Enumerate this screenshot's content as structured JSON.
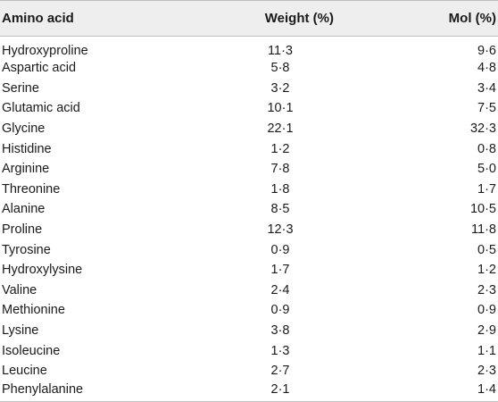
{
  "table": {
    "headers": {
      "amino_acid": "Amino acid",
      "weight": "Weight (%)",
      "mol": "Mol (%)"
    },
    "rows": [
      {
        "name": "Hydroxyproline",
        "weight": "11·3",
        "mol": "9·6"
      },
      {
        "name": "Aspartic acid",
        "weight": "5·8",
        "mol": "4·8"
      },
      {
        "name": "Serine",
        "weight": "3·2",
        "mol": "3·4"
      },
      {
        "name": "Glutamic acid",
        "weight": "10·1",
        "mol": "7·5"
      },
      {
        "name": "Glycine",
        "weight": "22·1",
        "mol": "32·3"
      },
      {
        "name": "Histidine",
        "weight": "1·2",
        "mol": "0·8"
      },
      {
        "name": "Arginine",
        "weight": "7·8",
        "mol": "5·0"
      },
      {
        "name": "Threonine",
        "weight": "1·8",
        "mol": "1·7"
      },
      {
        "name": "Alanine",
        "weight": "8·5",
        "mol": "10·5"
      },
      {
        "name": "Proline",
        "weight": "12·3",
        "mol": "11·8"
      },
      {
        "name": "Tyrosine",
        "weight": "0·9",
        "mol": "0·5"
      },
      {
        "name": "Hydroxylysine",
        "weight": "1·7",
        "mol": "1·2"
      },
      {
        "name": "Valine",
        "weight": "2·4",
        "mol": "2·3"
      },
      {
        "name": "Methionine",
        "weight": "0·9",
        "mol": "0·9"
      },
      {
        "name": "Lysine",
        "weight": "3·8",
        "mol": "2·9"
      },
      {
        "name": "Isoleucine",
        "weight": "1·3",
        "mol": "1·1"
      },
      {
        "name": "Leucine",
        "weight": "2·7",
        "mol": "2·3"
      },
      {
        "name": "Phenylalanine",
        "weight": "2·1",
        "mol": "1·4"
      }
    ]
  }
}
